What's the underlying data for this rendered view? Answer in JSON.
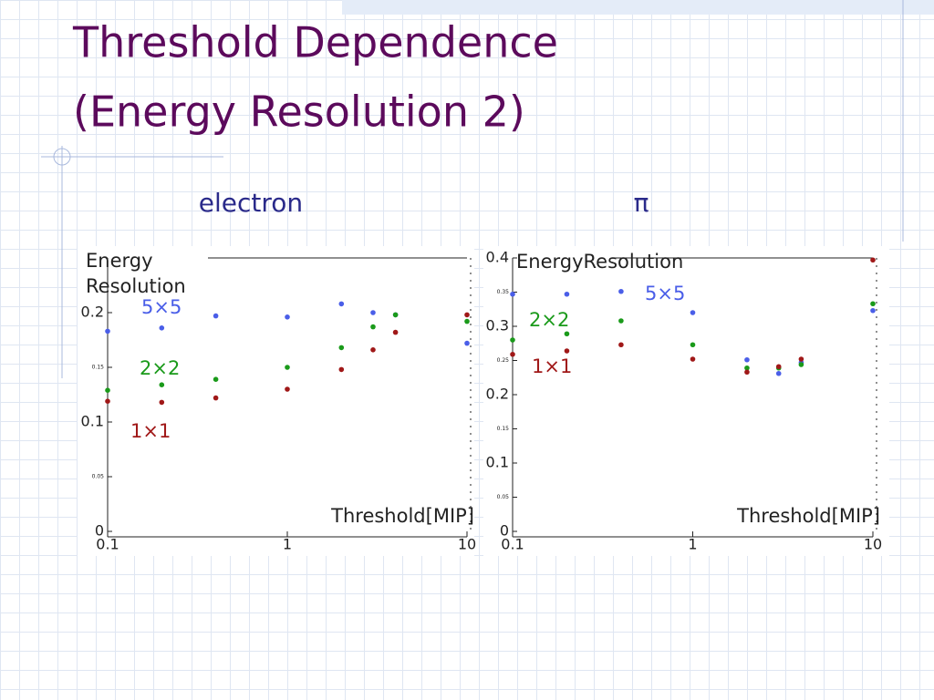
{
  "slide": {
    "title_lines": [
      "Threshold Dependence",
      "(Energy Resolution 2)"
    ]
  },
  "chart_data": [
    {
      "type": "scatter",
      "title": "electron",
      "ylabel": "Energy Resolution",
      "xlabel": "Threshold[MIP]",
      "xscale": "log",
      "xlim": [
        0.1,
        10
      ],
      "xticks": [
        0.1,
        1,
        10
      ],
      "ylim": [
        0,
        0.25
      ],
      "yticks": [
        0,
        0.05,
        0.1,
        0.15,
        0.2
      ],
      "x": [
        0.1,
        0.2,
        0.4,
        1,
        2,
        3,
        4,
        10
      ],
      "series": [
        {
          "name": "5×5",
          "color": "#4a5ee8",
          "values": [
            0.183,
            0.186,
            0.197,
            0.196,
            0.208,
            0.2,
            0.198,
            0.172
          ]
        },
        {
          "name": "2×2",
          "color": "#1a9a1a",
          "values": [
            0.129,
            0.134,
            0.139,
            0.15,
            0.168,
            0.187,
            0.198,
            0.192
          ]
        },
        {
          "name": "1×1",
          "color": "#a01818",
          "values": [
            0.119,
            0.118,
            0.122,
            0.13,
            0.148,
            0.166,
            0.182,
            0.198
          ]
        }
      ]
    },
    {
      "type": "scatter",
      "title": "π",
      "ylabel": "EnergyResolution",
      "xlabel": "Threshold[MIP]",
      "xscale": "log",
      "xlim": [
        0.1,
        10
      ],
      "xticks": [
        0.1,
        1,
        10
      ],
      "ylim": [
        0,
        0.4
      ],
      "yticks": [
        0,
        0.05,
        0.1,
        0.15,
        0.2,
        0.25,
        0.3,
        0.35,
        0.4
      ],
      "x": [
        0.1,
        0.2,
        0.4,
        1,
        2,
        3,
        4,
        10
      ],
      "series": [
        {
          "name": "5×5",
          "color": "#4a5ee8",
          "values": [
            0.347,
            0.347,
            0.351,
            0.32,
            0.251,
            0.231,
            0.247,
            0.323
          ]
        },
        {
          "name": "2×2",
          "color": "#1a9a1a",
          "values": [
            0.28,
            0.289,
            0.308,
            0.273,
            0.239,
            0.239,
            0.244,
            0.333
          ]
        },
        {
          "name": "1×1",
          "color": "#a01818",
          "values": [
            0.259,
            0.264,
            0.273,
            0.252,
            0.233,
            0.241,
            0.252,
            0.397
          ]
        }
      ]
    }
  ]
}
